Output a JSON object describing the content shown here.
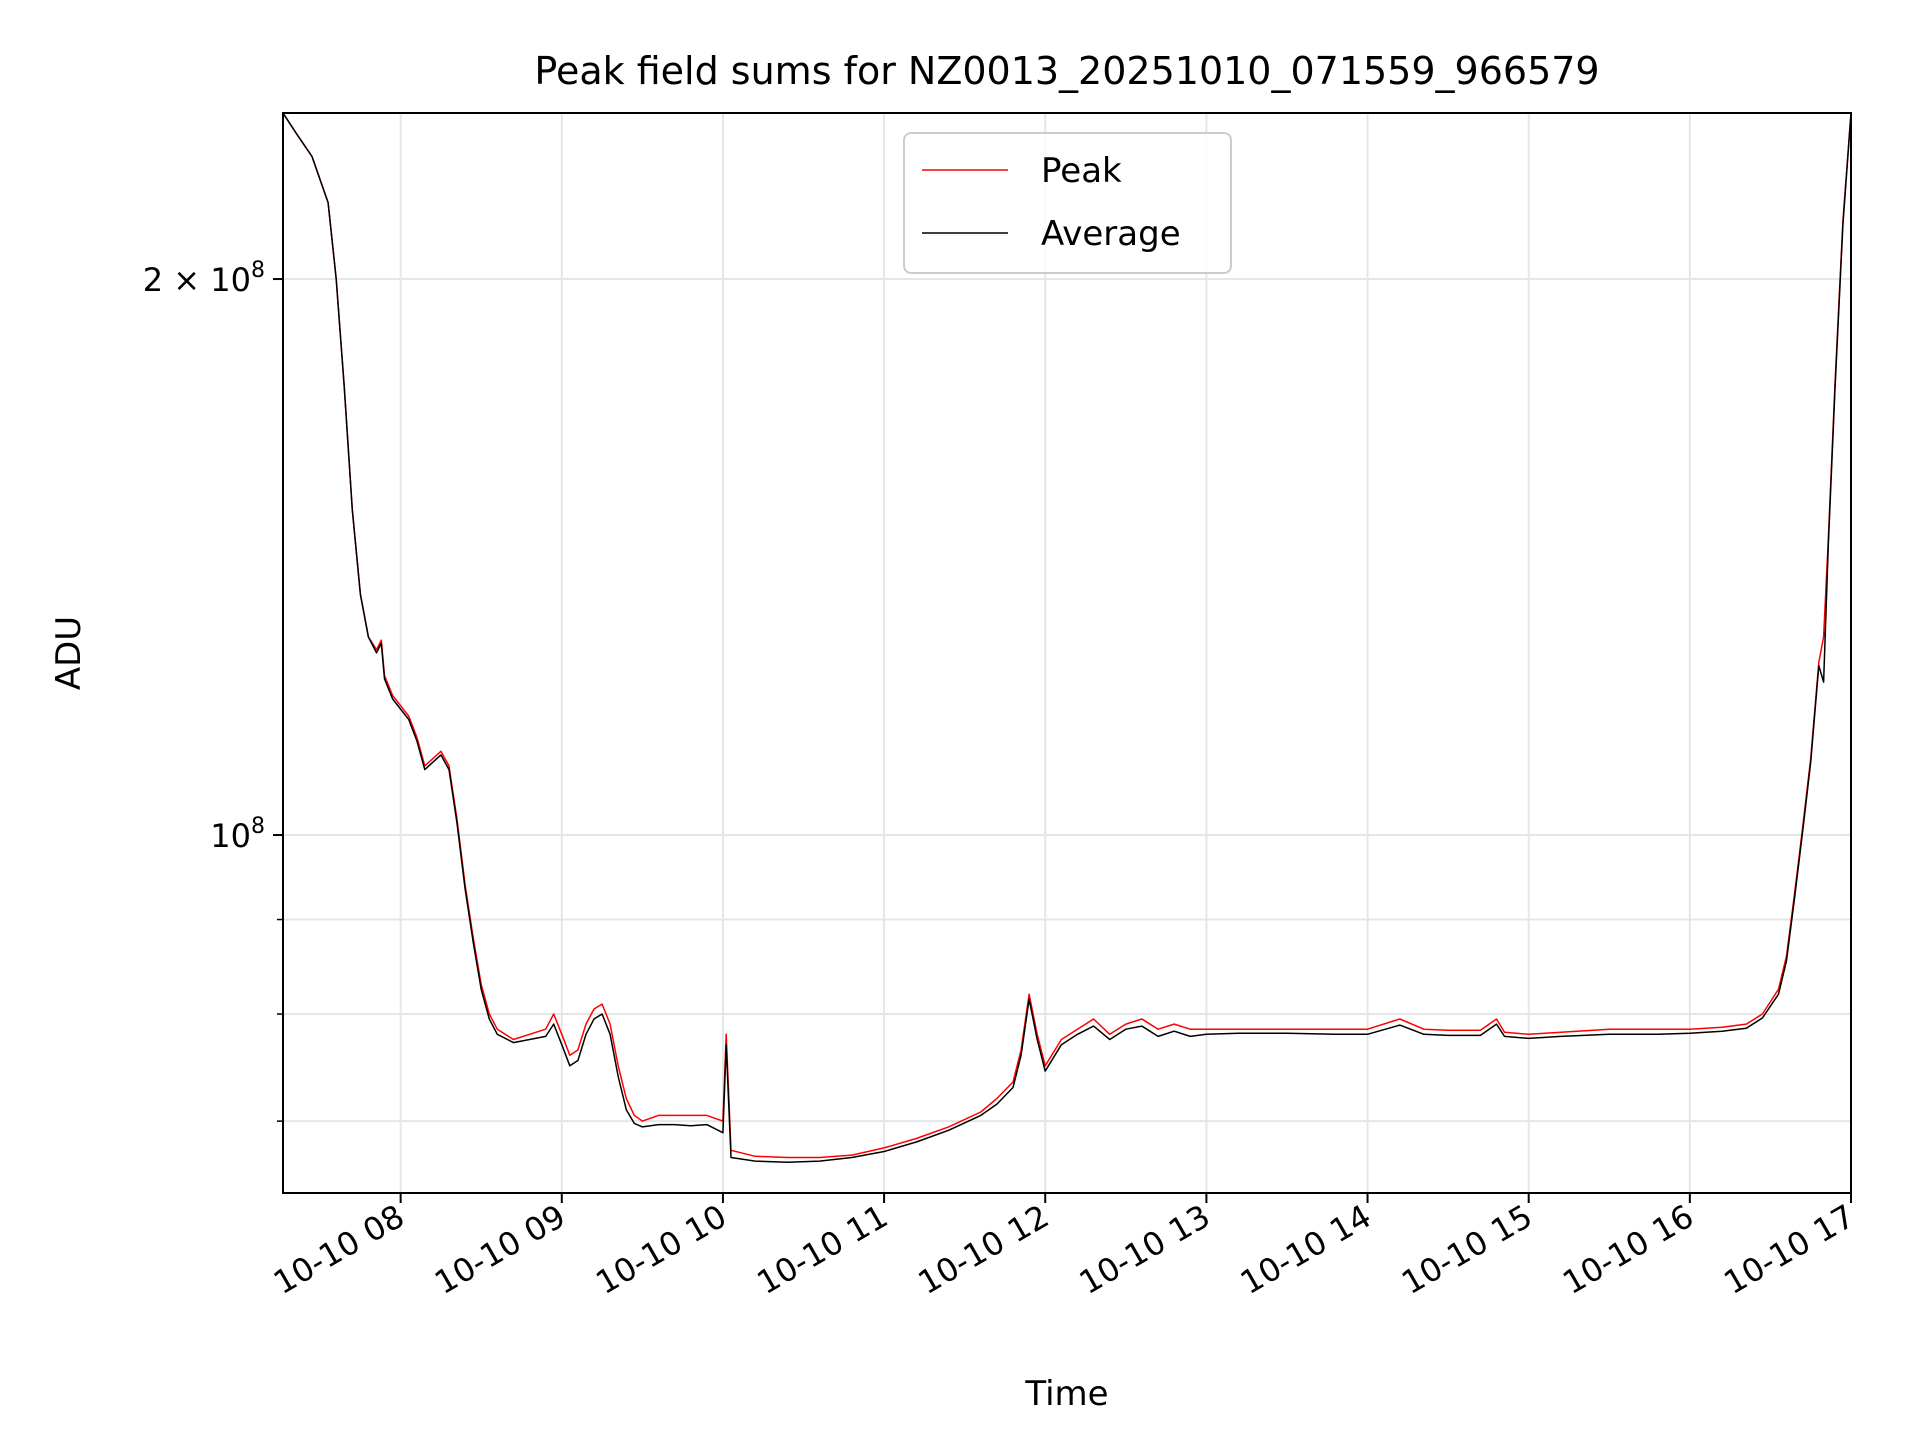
{
  "chart_data": {
    "type": "line",
    "title": "Peak field sums for NZ0013_20251010_071559_966579",
    "xlabel": "Time",
    "ylabel": "ADU",
    "yscale": "log",
    "xlim_hours": [
      7.27,
      17.0
    ],
    "ylim": [
      64000000,
      246000000
    ],
    "grid": true,
    "legend_position": "upper center",
    "x_ticks": [
      {
        "hour": 8,
        "label": "10-10 08"
      },
      {
        "hour": 9,
        "label": "10-10 09"
      },
      {
        "hour": 10,
        "label": "10-10 10"
      },
      {
        "hour": 11,
        "label": "10-10 11"
      },
      {
        "hour": 12,
        "label": "10-10 12"
      },
      {
        "hour": 13,
        "label": "10-10 13"
      },
      {
        "hour": 14,
        "label": "10-10 14"
      },
      {
        "hour": 15,
        "label": "10-10 15"
      },
      {
        "hour": 16,
        "label": "10-10 16"
      },
      {
        "hour": 17,
        "label": "10-10 17"
      }
    ],
    "y_major_ticks": [
      {
        "value": 100000000,
        "base": "10",
        "exp": "8",
        "coef": ""
      },
      {
        "value": 200000000,
        "base": "10",
        "exp": "8",
        "coef": "2 × "
      }
    ],
    "y_minor_ticks": [
      70000000,
      80000000,
      90000000
    ],
    "series": [
      {
        "name": "Peak",
        "color": "#ff0000",
        "points": [
          [
            7.27,
            246000000
          ],
          [
            7.35,
            240000000
          ],
          [
            7.45,
            233000000
          ],
          [
            7.55,
            220000000
          ],
          [
            7.6,
            200000000
          ],
          [
            7.65,
            175000000
          ],
          [
            7.7,
            150000000
          ],
          [
            7.75,
            135000000
          ],
          [
            7.8,
            128000000
          ],
          [
            7.85,
            126000000
          ],
          [
            7.88,
            127500000
          ],
          [
            7.9,
            122000000
          ],
          [
            7.95,
            119000000
          ],
          [
            8.0,
            117500000
          ],
          [
            8.05,
            116000000
          ],
          [
            8.1,
            113000000
          ],
          [
            8.15,
            109000000
          ],
          [
            8.2,
            110000000
          ],
          [
            8.25,
            111000000
          ],
          [
            8.3,
            109000000
          ],
          [
            8.35,
            102000000
          ],
          [
            8.4,
            94000000
          ],
          [
            8.45,
            88000000
          ],
          [
            8.5,
            83000000
          ],
          [
            8.55,
            80000000
          ],
          [
            8.6,
            78500000
          ],
          [
            8.7,
            77500000
          ],
          [
            8.8,
            78000000
          ],
          [
            8.9,
            78500000
          ],
          [
            8.95,
            80000000
          ],
          [
            9.0,
            78000000
          ],
          [
            9.05,
            76000000
          ],
          [
            9.1,
            76500000
          ],
          [
            9.15,
            79000000
          ],
          [
            9.2,
            80500000
          ],
          [
            9.25,
            81000000
          ],
          [
            9.3,
            79000000
          ],
          [
            9.35,
            75000000
          ],
          [
            9.4,
            72000000
          ],
          [
            9.45,
            70500000
          ],
          [
            9.5,
            70000000
          ],
          [
            9.6,
            70500000
          ],
          [
            9.7,
            70500000
          ],
          [
            9.8,
            70500000
          ],
          [
            9.9,
            70500000
          ],
          [
            10.0,
            70000000
          ],
          [
            10.02,
            78000000
          ],
          [
            10.05,
            67500000
          ],
          [
            10.2,
            67000000
          ],
          [
            10.4,
            66900000
          ],
          [
            10.6,
            66900000
          ],
          [
            10.8,
            67100000
          ],
          [
            11.0,
            67700000
          ],
          [
            11.2,
            68500000
          ],
          [
            11.4,
            69500000
          ],
          [
            11.6,
            70800000
          ],
          [
            11.7,
            72000000
          ],
          [
            11.8,
            73500000
          ],
          [
            11.85,
            76500000
          ],
          [
            11.9,
            82000000
          ],
          [
            11.95,
            78000000
          ],
          [
            12.0,
            75000000
          ],
          [
            12.1,
            77500000
          ],
          [
            12.2,
            78500000
          ],
          [
            12.3,
            79500000
          ],
          [
            12.4,
            78000000
          ],
          [
            12.5,
            79000000
          ],
          [
            12.6,
            79500000
          ],
          [
            12.7,
            78500000
          ],
          [
            12.8,
            79000000
          ],
          [
            12.9,
            78500000
          ],
          [
            13.0,
            78500000
          ],
          [
            13.2,
            78500000
          ],
          [
            13.5,
            78500000
          ],
          [
            13.8,
            78500000
          ],
          [
            14.0,
            78500000
          ],
          [
            14.2,
            79500000
          ],
          [
            14.35,
            78500000
          ],
          [
            14.5,
            78400000
          ],
          [
            14.7,
            78400000
          ],
          [
            14.8,
            79500000
          ],
          [
            14.85,
            78200000
          ],
          [
            15.0,
            78000000
          ],
          [
            15.2,
            78200000
          ],
          [
            15.5,
            78500000
          ],
          [
            15.8,
            78500000
          ],
          [
            16.0,
            78500000
          ],
          [
            16.2,
            78700000
          ],
          [
            16.35,
            79000000
          ],
          [
            16.45,
            80000000
          ],
          [
            16.55,
            82500000
          ],
          [
            16.6,
            86000000
          ],
          [
            16.65,
            93000000
          ],
          [
            16.7,
            101000000
          ],
          [
            16.75,
            110000000
          ],
          [
            16.8,
            124000000
          ],
          [
            16.83,
            128000000
          ],
          [
            16.86,
            145000000
          ],
          [
            16.9,
            175000000
          ],
          [
            16.95,
            215000000
          ],
          [
            17.0,
            246000000
          ]
        ]
      },
      {
        "name": "Average",
        "color": "#000000",
        "points": [
          [
            7.27,
            246000000
          ],
          [
            7.35,
            240000000
          ],
          [
            7.45,
            233000000
          ],
          [
            7.55,
            220000000
          ],
          [
            7.6,
            200000000
          ],
          [
            7.65,
            175000000
          ],
          [
            7.7,
            150000000
          ],
          [
            7.75,
            135000000
          ],
          [
            7.8,
            128000000
          ],
          [
            7.85,
            125500000
          ],
          [
            7.88,
            127000000
          ],
          [
            7.9,
            121500000
          ],
          [
            7.95,
            118500000
          ],
          [
            8.0,
            117000000
          ],
          [
            8.05,
            115500000
          ],
          [
            8.1,
            112500000
          ],
          [
            8.15,
            108500000
          ],
          [
            8.2,
            109500000
          ],
          [
            8.25,
            110500000
          ],
          [
            8.3,
            108500000
          ],
          [
            8.35,
            101500000
          ],
          [
            8.4,
            93500000
          ],
          [
            8.45,
            87500000
          ],
          [
            8.5,
            82500000
          ],
          [
            8.55,
            79500000
          ],
          [
            8.6,
            78000000
          ],
          [
            8.7,
            77200000
          ],
          [
            8.8,
            77500000
          ],
          [
            8.9,
            77800000
          ],
          [
            8.95,
            79000000
          ],
          [
            9.0,
            77000000
          ],
          [
            9.05,
            75000000
          ],
          [
            9.1,
            75500000
          ],
          [
            9.15,
            78000000
          ],
          [
            9.2,
            79500000
          ],
          [
            9.25,
            80000000
          ],
          [
            9.3,
            78000000
          ],
          [
            9.35,
            74000000
          ],
          [
            9.4,
            71000000
          ],
          [
            9.45,
            69800000
          ],
          [
            9.5,
            69500000
          ],
          [
            9.6,
            69700000
          ],
          [
            9.7,
            69700000
          ],
          [
            9.8,
            69600000
          ],
          [
            9.9,
            69700000
          ],
          [
            10.0,
            69000000
          ],
          [
            10.02,
            77000000
          ],
          [
            10.05,
            66900000
          ],
          [
            10.2,
            66600000
          ],
          [
            10.4,
            66500000
          ],
          [
            10.6,
            66600000
          ],
          [
            10.8,
            66900000
          ],
          [
            11.0,
            67400000
          ],
          [
            11.2,
            68200000
          ],
          [
            11.4,
            69200000
          ],
          [
            11.6,
            70500000
          ],
          [
            11.7,
            71500000
          ],
          [
            11.8,
            73000000
          ],
          [
            11.85,
            76000000
          ],
          [
            11.9,
            81500000
          ],
          [
            11.95,
            77500000
          ],
          [
            12.0,
            74500000
          ],
          [
            12.1,
            77000000
          ],
          [
            12.2,
            78000000
          ],
          [
            12.3,
            78800000
          ],
          [
            12.4,
            77500000
          ],
          [
            12.5,
            78500000
          ],
          [
            12.6,
            78800000
          ],
          [
            12.7,
            77800000
          ],
          [
            12.8,
            78300000
          ],
          [
            12.9,
            77800000
          ],
          [
            13.0,
            78000000
          ],
          [
            13.2,
            78100000
          ],
          [
            13.5,
            78100000
          ],
          [
            13.8,
            78000000
          ],
          [
            14.0,
            78000000
          ],
          [
            14.2,
            78900000
          ],
          [
            14.35,
            78000000
          ],
          [
            14.5,
            77900000
          ],
          [
            14.7,
            77900000
          ],
          [
            14.8,
            79000000
          ],
          [
            14.85,
            77800000
          ],
          [
            15.0,
            77600000
          ],
          [
            15.2,
            77800000
          ],
          [
            15.5,
            78000000
          ],
          [
            15.8,
            78000000
          ],
          [
            16.0,
            78100000
          ],
          [
            16.2,
            78300000
          ],
          [
            16.35,
            78600000
          ],
          [
            16.45,
            79600000
          ],
          [
            16.55,
            82000000
          ],
          [
            16.6,
            85500000
          ],
          [
            16.65,
            92500000
          ],
          [
            16.7,
            100500000
          ],
          [
            16.75,
            109500000
          ],
          [
            16.8,
            123500000
          ],
          [
            16.83,
            121000000
          ],
          [
            16.86,
            144000000
          ],
          [
            16.9,
            174000000
          ],
          [
            16.95,
            214000000
          ],
          [
            17.0,
            246000000
          ]
        ]
      }
    ]
  }
}
